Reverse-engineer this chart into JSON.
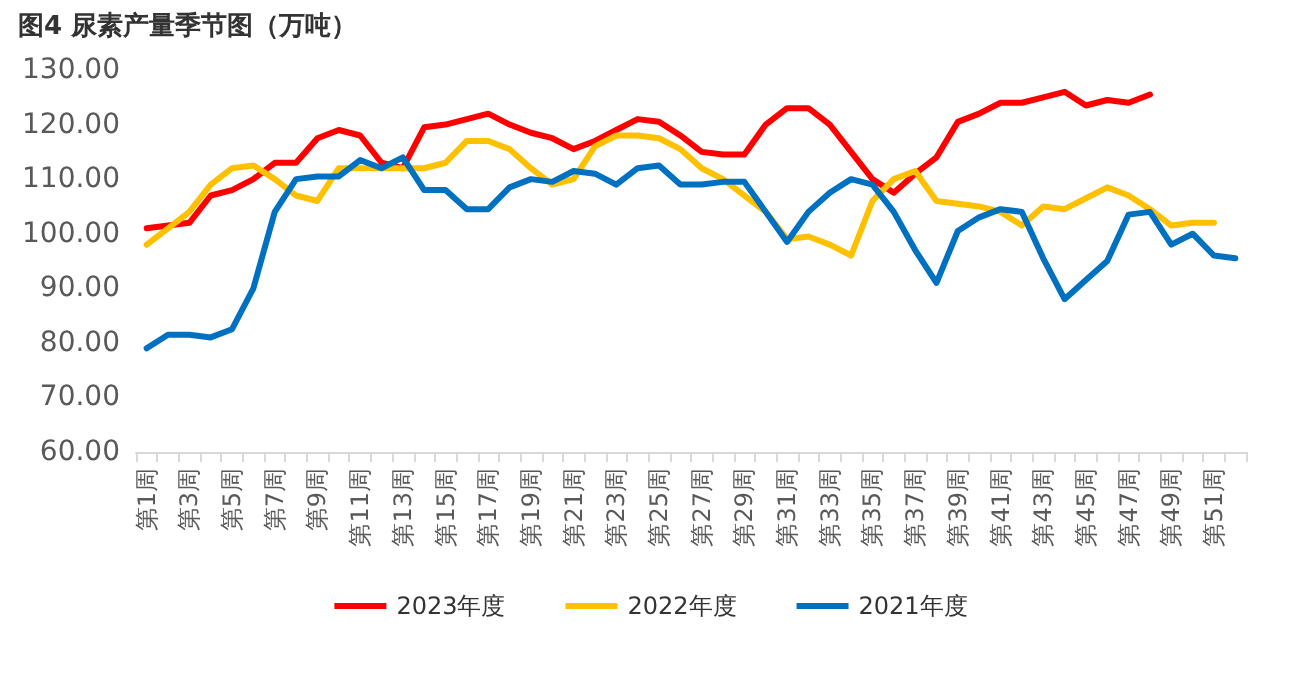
{
  "chart_data": {
    "type": "line",
    "title": "图4 尿素产量季节图（万吨）",
    "categories": [
      "第1周",
      null,
      "第3周",
      null,
      "第5周",
      null,
      "第7周",
      null,
      "第9周",
      null,
      "第11周",
      null,
      "第13周",
      null,
      "第15周",
      null,
      "第17周",
      null,
      "第19周",
      null,
      "第21周",
      null,
      "第23周",
      null,
      "第25周",
      null,
      "第27周",
      null,
      "第29周",
      null,
      "第31周",
      null,
      "第33周",
      null,
      "第35周",
      null,
      "第37周",
      null,
      "第39周",
      null,
      "第41周",
      null,
      "第43周",
      null,
      "第45周",
      null,
      "第47周",
      null,
      "第49周",
      null,
      "第51周",
      null
    ],
    "series": [
      {
        "name": "2023年度",
        "color": "#ff0000",
        "values": [
          101,
          101.5,
          102,
          107,
          108,
          110,
          113,
          113,
          117.5,
          119,
          118,
          113,
          112,
          119.5,
          120,
          121,
          122,
          120,
          118.5,
          117.5,
          115.5,
          117,
          119,
          121,
          120.5,
          118,
          115,
          114.5,
          114.5,
          120,
          123,
          123,
          120,
          115,
          110,
          107.5,
          111,
          114,
          120.5,
          122,
          124,
          124,
          125,
          126,
          123.5,
          124.5,
          124,
          125.5,
          null,
          null,
          null,
          null
        ]
      },
      {
        "name": "2022年度",
        "color": "#ffc000",
        "values": [
          98,
          101,
          104,
          109,
          112,
          112.5,
          110,
          107,
          106,
          112,
          112,
          112,
          112,
          112,
          113,
          117,
          117,
          115.5,
          112,
          109,
          110,
          116,
          118,
          118,
          117.5,
          115.5,
          112,
          110,
          107,
          104,
          99,
          99.5,
          98,
          96,
          106,
          110,
          111.5,
          106,
          105.5,
          105,
          104,
          101.5,
          105,
          104.5,
          106.5,
          108.5,
          107,
          104.5,
          101.5,
          102,
          102,
          null
        ]
      },
      {
        "name": "2021年度",
        "color": "#0070c0",
        "values": [
          79,
          81.5,
          81.5,
          81,
          82.5,
          90,
          104,
          110,
          110.5,
          110.5,
          113.5,
          112,
          114,
          108,
          108,
          104.5,
          104.5,
          108.5,
          110,
          109.5,
          111.5,
          111,
          109,
          112,
          112.5,
          109,
          109,
          109.5,
          109.5,
          104,
          98.5,
          104,
          107.5,
          110,
          109,
          104,
          97,
          91,
          100.5,
          103,
          104.5,
          104,
          95.5,
          88,
          91.5,
          95,
          103.5,
          104,
          98,
          100,
          96,
          95.5
        ]
      }
    ],
    "ylim": [
      60,
      130
    ],
    "yticks": [
      {
        "value": 60,
        "label": "60.00"
      },
      {
        "value": 70,
        "label": "70.00"
      },
      {
        "value": 80,
        "label": "80.00"
      },
      {
        "value": 90,
        "label": "90.00"
      },
      {
        "value": 100,
        "label": "100.00"
      },
      {
        "value": 110,
        "label": "110.00"
      },
      {
        "value": 120,
        "label": "120.00"
      },
      {
        "value": 130,
        "label": "130.00"
      }
    ],
    "grid": false,
    "legend": "bottom",
    "marker": "none",
    "line_style": "solid"
  }
}
